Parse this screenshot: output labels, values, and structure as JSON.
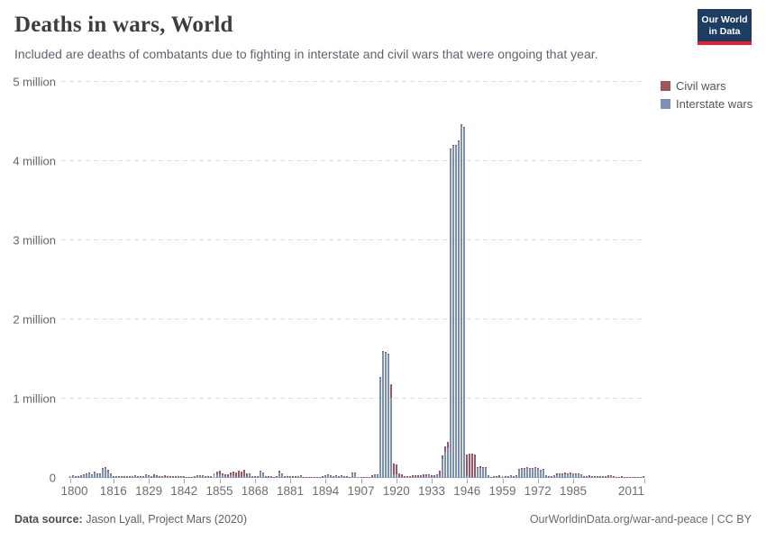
{
  "header": {
    "title": "Deaths in wars, World",
    "subtitle": "Included are deaths of combatants due to fighting in interstate and civil wars that were ongoing that year.",
    "logo": {
      "line1": "Our World",
      "line2": "in Data",
      "bg_color": "#1d3d63",
      "accent_color": "#e0232e"
    }
  },
  "legend": {
    "items": [
      {
        "label": "Civil wars",
        "color": "#a2545e"
      },
      {
        "label": "Interstate wars",
        "color": "#7b8fbc"
      }
    ]
  },
  "footer": {
    "source_label": "Data source:",
    "source_text": " Jason Lyall, Project Mars (2020)",
    "link_text": "OurWorldinData.org/war-and-peace | CC BY"
  },
  "chart_data": {
    "type": "bar",
    "stacked": true,
    "title": "Deaths in wars, World",
    "unit": "millions of deaths",
    "x_start": 1800,
    "x_end": 2011,
    "x_note": "values arrays are consecutive years 1800-2011, stacked with Interstate wars on bottom and Civil wars on top",
    "ylim": [
      0,
      5
    ],
    "grid": "dashed horizontal",
    "legend_position": "top-right",
    "x_tick_labels": [
      1800,
      1816,
      1829,
      1842,
      1855,
      1868,
      1881,
      1894,
      1907,
      1920,
      1933,
      1946,
      1959,
      1972,
      1985,
      2011
    ],
    "y_ticks": [
      {
        "value": 0,
        "label": "0"
      },
      {
        "value": 1,
        "label": "1 million"
      },
      {
        "value": 2,
        "label": "2 million"
      },
      {
        "value": 3,
        "label": "3 million"
      },
      {
        "value": 4,
        "label": "4 million"
      },
      {
        "value": 5,
        "label": "5 million"
      }
    ],
    "series": [
      {
        "name": "Interstate wars",
        "color": "#7b8fbc",
        "values": [
          0.02,
          0.03,
          0.015,
          0.02,
          0.03,
          0.04,
          0.05,
          0.06,
          0.04,
          0.07,
          0.045,
          0.04,
          0.11,
          0.13,
          0.085,
          0.05,
          0.015,
          0.01,
          0.008,
          0.005,
          0.006,
          0.01,
          0.012,
          0.015,
          0.02,
          0.015,
          0.02,
          0.018,
          0.035,
          0.03,
          0.006,
          0.01,
          0.012,
          0.005,
          0.004,
          0.004,
          0.004,
          0.005,
          0.006,
          0.01,
          0.01,
          0.012,
          0.01,
          0.004,
          0.004,
          0.005,
          0.015,
          0.022,
          0.025,
          0.02,
          0.005,
          0.004,
          0.004,
          0.03,
          0.04,
          0.05,
          0.03,
          0.02,
          0.015,
          0.03,
          0.025,
          0.012,
          0.015,
          0.012,
          0.02,
          0.015,
          0.045,
          0.01,
          0.01,
          0.006,
          0.08,
          0.06,
          0.006,
          0.01,
          0.006,
          0.006,
          0.01,
          0.07,
          0.05,
          0.02,
          0.01,
          0.01,
          0.015,
          0.012,
          0.02,
          0.02,
          0.005,
          0.004,
          0.004,
          0.004,
          0.004,
          0.004,
          0.005,
          0.01,
          0.025,
          0.03,
          0.02,
          0.015,
          0.02,
          0.02,
          0.025,
          0.015,
          0.015,
          0.005,
          0.055,
          0.06,
          0.005,
          0.004,
          0.005,
          0.004,
          0.005,
          0.015,
          0.035,
          0.035,
          1.27,
          1.59,
          1.58,
          1.56,
          1.01,
          0.04,
          0.05,
          0.012,
          0.01,
          0.005,
          0.005,
          0.01,
          0.01,
          0.01,
          0.01,
          0.015,
          0.01,
          0.02,
          0.03,
          0.015,
          0.01,
          0.03,
          0.02,
          0.24,
          0.33,
          0.38,
          4.15,
          4.2,
          4.2,
          4.25,
          4.46,
          4.42,
          0.02,
          0.01,
          0.012,
          0.01,
          0.12,
          0.13,
          0.12,
          0.12,
          0.02,
          0.005,
          0.015,
          0.005,
          0.01,
          0.008,
          0.005,
          0.006,
          0.02,
          0.01,
          0.02,
          0.1,
          0.11,
          0.11,
          0.12,
          0.11,
          0.11,
          0.12,
          0.11,
          0.1,
          0.1,
          0.02,
          0.005,
          0.01,
          0.02,
          0.03,
          0.04,
          0.04,
          0.045,
          0.04,
          0.045,
          0.04,
          0.04,
          0.045,
          0.03,
          0.005,
          0.005,
          0.015,
          0.004,
          0.004,
          0.004,
          0.003,
          0.003,
          0.003,
          0.015,
          0.02,
          0.015,
          0.005,
          0.003,
          0.01,
          0.003,
          0.002,
          0.002,
          0.002,
          0.003,
          0.002,
          0.002,
          0.002
        ]
      },
      {
        "name": "Civil wars",
        "color": "#a2545e",
        "values": [
          0.004,
          0.004,
          0.004,
          0.004,
          0.005,
          0.005,
          0.005,
          0.005,
          0.006,
          0.006,
          0.01,
          0.012,
          0.01,
          0.012,
          0.012,
          0.01,
          0.012,
          0.015,
          0.015,
          0.012,
          0.015,
          0.018,
          0.015,
          0.012,
          0.01,
          0.008,
          0.008,
          0.006,
          0.006,
          0.006,
          0.01,
          0.035,
          0.02,
          0.015,
          0.02,
          0.022,
          0.02,
          0.018,
          0.015,
          0.012,
          0.008,
          0.008,
          0.008,
          0.006,
          0.006,
          0.006,
          0.008,
          0.008,
          0.012,
          0.015,
          0.018,
          0.02,
          0.02,
          0.03,
          0.035,
          0.04,
          0.03,
          0.025,
          0.03,
          0.04,
          0.05,
          0.06,
          0.08,
          0.07,
          0.08,
          0.04,
          0.012,
          0.012,
          0.015,
          0.01,
          0.012,
          0.01,
          0.012,
          0.015,
          0.01,
          0.006,
          0.01,
          0.02,
          0.012,
          0.006,
          0.006,
          0.006,
          0.01,
          0.006,
          0.006,
          0.01,
          0.005,
          0.005,
          0.005,
          0.005,
          0.005,
          0.005,
          0.006,
          0.006,
          0.006,
          0.012,
          0.015,
          0.012,
          0.01,
          0.006,
          0.01,
          0.012,
          0.01,
          0.006,
          0.005,
          0.012,
          0.006,
          0.006,
          0.006,
          0.006,
          0.006,
          0.015,
          0.01,
          0.01,
          0.006,
          0.005,
          0.005,
          0.01,
          0.17,
          0.14,
          0.12,
          0.05,
          0.04,
          0.012,
          0.012,
          0.015,
          0.02,
          0.025,
          0.03,
          0.025,
          0.035,
          0.03,
          0.02,
          0.02,
          0.02,
          0.015,
          0.07,
          0.04,
          0.07,
          0.07,
          0.01,
          0.005,
          0.005,
          0.005,
          0.005,
          0.005,
          0.28,
          0.3,
          0.3,
          0.29,
          0.02,
          0.02,
          0.012,
          0.012,
          0.012,
          0.006,
          0.012,
          0.01,
          0.02,
          0.012,
          0.012,
          0.012,
          0.015,
          0.012,
          0.012,
          0.015,
          0.012,
          0.02,
          0.012,
          0.012,
          0.012,
          0.015,
          0.012,
          0.006,
          0.012,
          0.012,
          0.012,
          0.012,
          0.02,
          0.025,
          0.02,
          0.02,
          0.02,
          0.02,
          0.02,
          0.02,
          0.015,
          0.015,
          0.02,
          0.02,
          0.02,
          0.02,
          0.02,
          0.015,
          0.02,
          0.012,
          0.01,
          0.012,
          0.015,
          0.015,
          0.012,
          0.006,
          0.005,
          0.006,
          0.005,
          0.005,
          0.005,
          0.008,
          0.006,
          0.008,
          0.006,
          0.012
        ]
      }
    ]
  }
}
